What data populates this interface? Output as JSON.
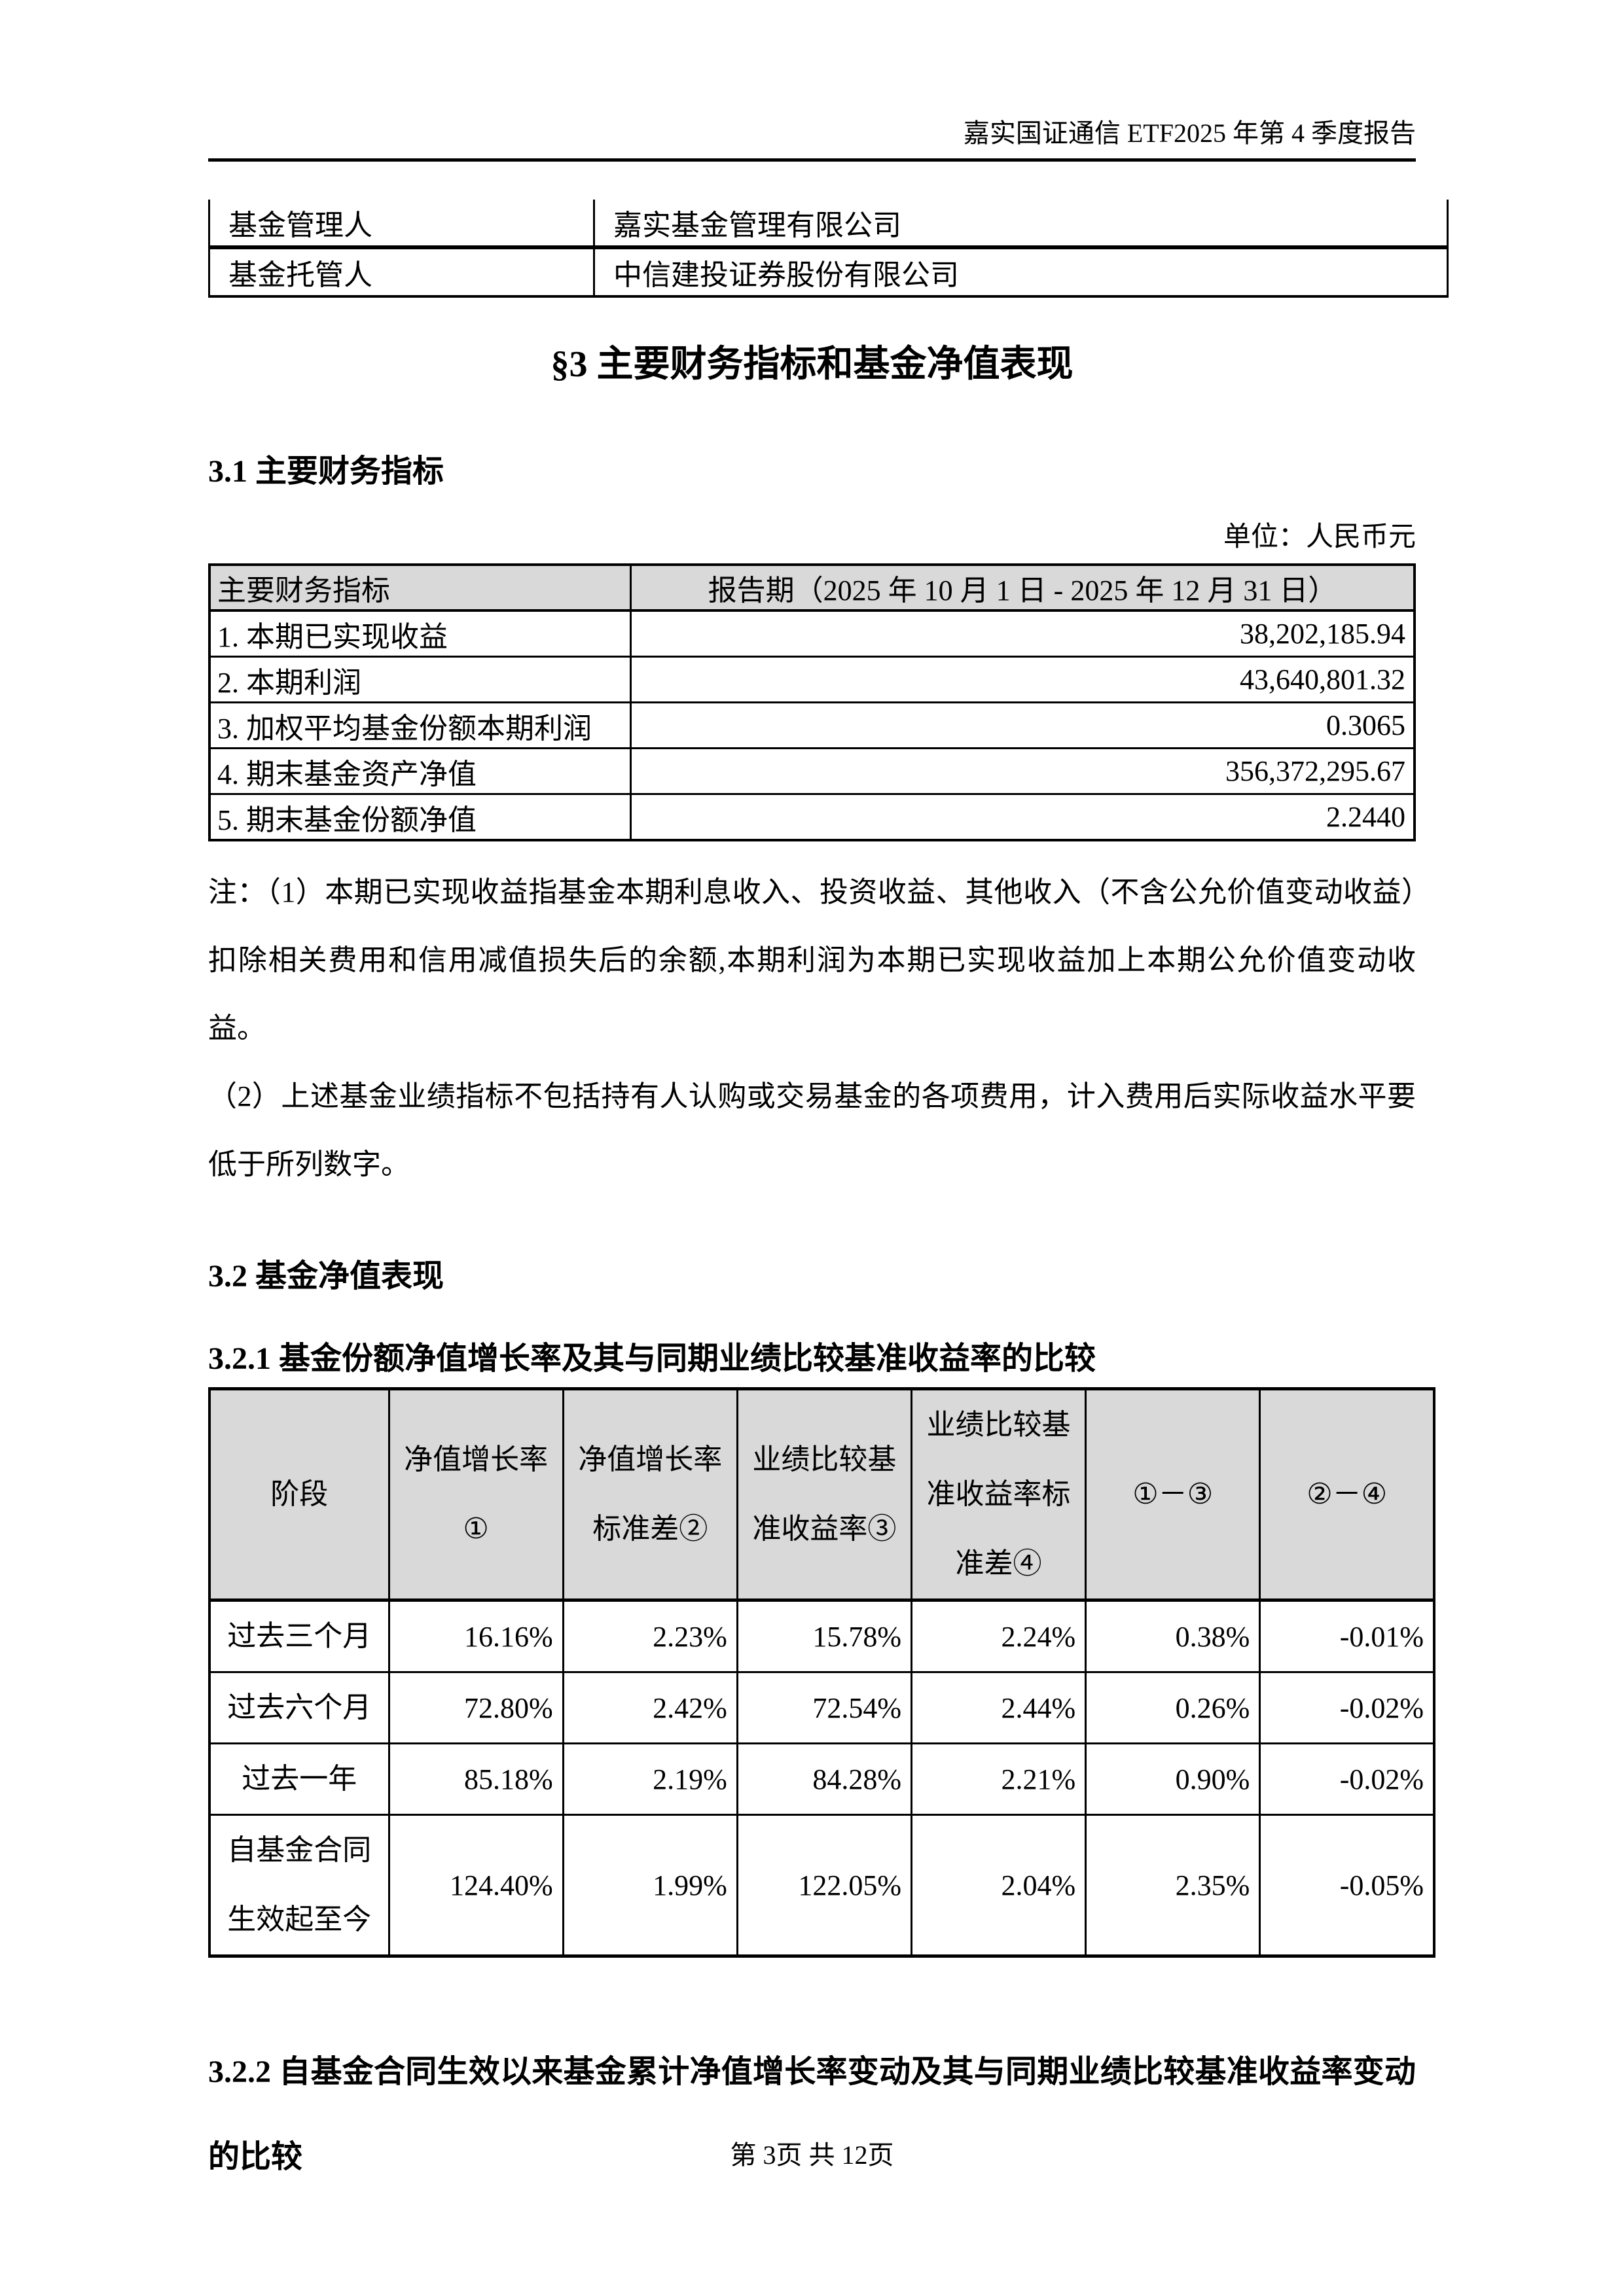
{
  "page_header": {
    "title": "嘉实国证通信 ETF2025 年第 4 季度报告"
  },
  "info_table": {
    "rows": [
      {
        "label": "基金管理人",
        "value": "嘉实基金管理有限公司"
      },
      {
        "label": "基金托管人",
        "value": "中信建投证券股份有限公司"
      }
    ]
  },
  "section3": {
    "title": "§3  主要财务指标和基金净值表现"
  },
  "section31": {
    "heading": "3.1 主要财务指标",
    "unit_note": "单位：人民币元",
    "table": {
      "col1_header": "主要财务指标",
      "col2_header": "报告期（2025 年 10 月 1 日 - 2025 年 12 月 31 日）",
      "rows": [
        {
          "label": "1. 本期已实现收益",
          "value": "38,202,185.94"
        },
        {
          "label": "2. 本期利润",
          "value": "43,640,801.32"
        },
        {
          "label": "3. 加权平均基金份额本期利润",
          "value": "0.3065"
        },
        {
          "label": "4. 期末基金资产净值",
          "value": "356,372,295.67"
        },
        {
          "label": "5. 期末基金份额净值",
          "value": "2.2440"
        }
      ]
    },
    "notes": [
      "注：（1）本期已实现收益指基金本期利息收入、投资收益、其他收入（不含公允价值变动收益）扣除相关费用和信用减值损失后的余额,本期利润为本期已实现收益加上本期公允价值变动收益。",
      "（2）上述基金业绩指标不包括持有人认购或交易基金的各项费用，计入费用后实际收益水平要低于所列数字。"
    ]
  },
  "section32": {
    "heading": "3.2 基金净值表现"
  },
  "section321": {
    "heading": "3.2.1 基金份额净值增长率及其与同期业绩比较基准收益率的比较",
    "table": {
      "headers": [
        "阶段",
        "净值增长率\n①",
        "净值增长率\n标准差②",
        "业绩比较基\n准收益率③",
        "业绩比较基\n准收益率标\n准差④",
        "①－③",
        "②－④"
      ],
      "rows": [
        [
          "过去三个月",
          "16.16%",
          "2.23%",
          "15.78%",
          "2.24%",
          "0.38%",
          "-0.01%"
        ],
        [
          "过去六个月",
          "72.80%",
          "2.42%",
          "72.54%",
          "2.44%",
          "0.26%",
          "-0.02%"
        ],
        [
          "过去一年",
          "85.18%",
          "2.19%",
          "84.28%",
          "2.21%",
          "0.90%",
          "-0.02%"
        ],
        [
          "自基金合同\n生效起至今",
          "124.40%",
          "1.99%",
          "122.05%",
          "2.04%",
          "2.35%",
          "-0.05%"
        ]
      ]
    }
  },
  "section322": {
    "heading": "3.2.2 自基金合同生效以来基金累计净值增长率变动及其与同期业绩比较基准收益率变动的比较"
  },
  "page_footer": {
    "text": "第 3页 共 12页"
  }
}
